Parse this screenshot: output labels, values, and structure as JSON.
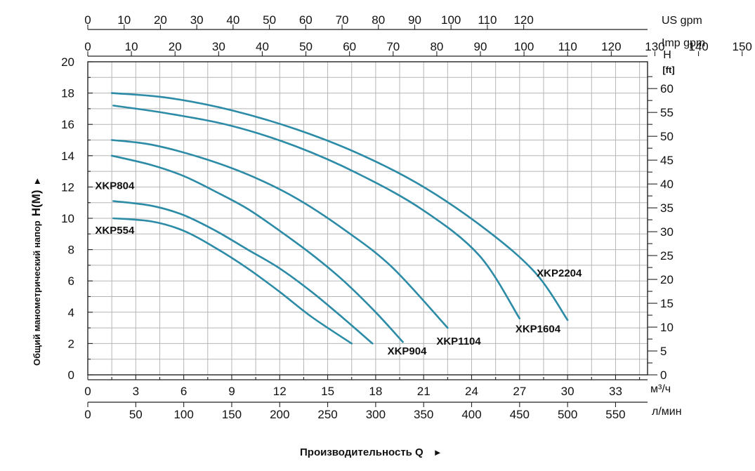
{
  "chart_data": {
    "type": "line",
    "title": "",
    "ylabel": "Общий манометрический напор",
    "ylabel_symbol": "H(M)",
    "xlabel": "Производительность Q",
    "arrow_glyph": "►",
    "ylabel_arrow_glyph": "►",
    "xlim": [
      0,
      35
    ],
    "ylim": [
      0,
      20
    ],
    "grid": true,
    "x_axis_bottom_primary": {
      "unit": "м³/ч",
      "ticks": [
        0,
        3,
        6,
        9,
        12,
        15,
        18,
        21,
        24,
        27,
        30,
        33
      ],
      "tick_labels": [
        "0",
        "3",
        "6",
        "9",
        "12",
        "15",
        "18",
        "21",
        "24",
        "27",
        "30",
        "33"
      ]
    },
    "x_axis_bottom_secondary": {
      "unit": "л/мин",
      "ticks": [
        0,
        50,
        100,
        150,
        200,
        250,
        300,
        350,
        400,
        450,
        500,
        550
      ],
      "tick_labels": [
        "0",
        "50",
        "100",
        "150",
        "200",
        "250",
        "300",
        "350",
        "400",
        "450",
        "500",
        "550"
      ]
    },
    "x_axis_top_us": {
      "unit": "US gpm",
      "ticks": [
        0,
        10,
        20,
        30,
        40,
        50,
        60,
        70,
        80,
        90,
        100,
        110,
        120
      ],
      "tick_labels": [
        "0",
        "10",
        "20",
        "30",
        "40",
        "50",
        "60",
        "70",
        "80",
        "90",
        "100",
        "110",
        "120"
      ]
    },
    "x_axis_top_imp": {
      "unit": "Imp gpm",
      "ticks": [
        0,
        10,
        20,
        30,
        40,
        50,
        60,
        70,
        80,
        90,
        100,
        110,
        120,
        130,
        140,
        150
      ],
      "tick_labels": [
        "0",
        "10",
        "20",
        "30",
        "40",
        "50",
        "60",
        "70",
        "80",
        "90",
        "100",
        "110",
        "120",
        "130",
        "140",
        "150"
      ]
    },
    "y_axis_left": {
      "ticks": [
        0,
        2,
        4,
        6,
        8,
        10,
        12,
        14,
        16,
        18,
        20
      ],
      "tick_labels": [
        "0",
        "2",
        "4",
        "6",
        "8",
        "10",
        "12",
        "14",
        "16",
        "18",
        "20"
      ]
    },
    "y_axis_right": {
      "unit_top": "H",
      "unit": "[ft]",
      "ticks": [
        0,
        5,
        10,
        15,
        20,
        25,
        30,
        35,
        40,
        45,
        50,
        55,
        60
      ],
      "tick_labels": [
        "0",
        "5",
        "10",
        "15",
        "20",
        "25",
        "30",
        "35",
        "40",
        "45",
        "50",
        "55",
        "60"
      ]
    },
    "series": [
      {
        "name": "XKP554",
        "label": "XKP554",
        "x": [
          1.6,
          4.0,
          6.0,
          8.0,
          10.0,
          12.0,
          14.0,
          16.5
        ],
        "y": [
          10.0,
          9.8,
          9.2,
          8.1,
          6.8,
          5.3,
          3.7,
          2.0
        ]
      },
      {
        "name": "XKP804",
        "label": "XKP804",
        "x": [
          1.6,
          4.0,
          6.0,
          8.0,
          10.0,
          12.0,
          14.0,
          16.0,
          17.8
        ],
        "y": [
          11.1,
          10.8,
          10.2,
          9.2,
          8.0,
          6.8,
          5.3,
          3.6,
          2.0
        ]
      },
      {
        "name": "XKP904",
        "label": "XKP904",
        "x": [
          1.5,
          4.0,
          6.0,
          8.0,
          10.0,
          12.0,
          14.0,
          16.0,
          18.0,
          19.7
        ],
        "y": [
          14.0,
          13.4,
          12.7,
          11.7,
          10.6,
          9.2,
          7.7,
          6.0,
          4.0,
          2.1
        ]
      },
      {
        "name": "XKP1104",
        "label": "XKP1104",
        "x": [
          1.5,
          4.0,
          7.0,
          10.0,
          13.0,
          16.0,
          19.0,
          22.5
        ],
        "y": [
          15.0,
          14.7,
          13.9,
          12.8,
          11.3,
          9.3,
          6.9,
          3.0
        ]
      },
      {
        "name": "XKP1604",
        "label": "XKP1604",
        "x": [
          1.6,
          5.0,
          9.0,
          13.0,
          17.0,
          21.0,
          24.5,
          27.0
        ],
        "y": [
          17.2,
          16.7,
          15.9,
          14.6,
          12.8,
          10.5,
          7.6,
          3.6
        ]
      },
      {
        "name": "XKP2204",
        "label": "XKP2204",
        "x": [
          1.5,
          5.0,
          9.0,
          13.0,
          17.0,
          21.0,
          25.0,
          28.0,
          30.0
        ],
        "y": [
          18.0,
          17.7,
          16.9,
          15.7,
          14.1,
          12.0,
          9.2,
          6.5,
          3.5
        ]
      }
    ]
  }
}
